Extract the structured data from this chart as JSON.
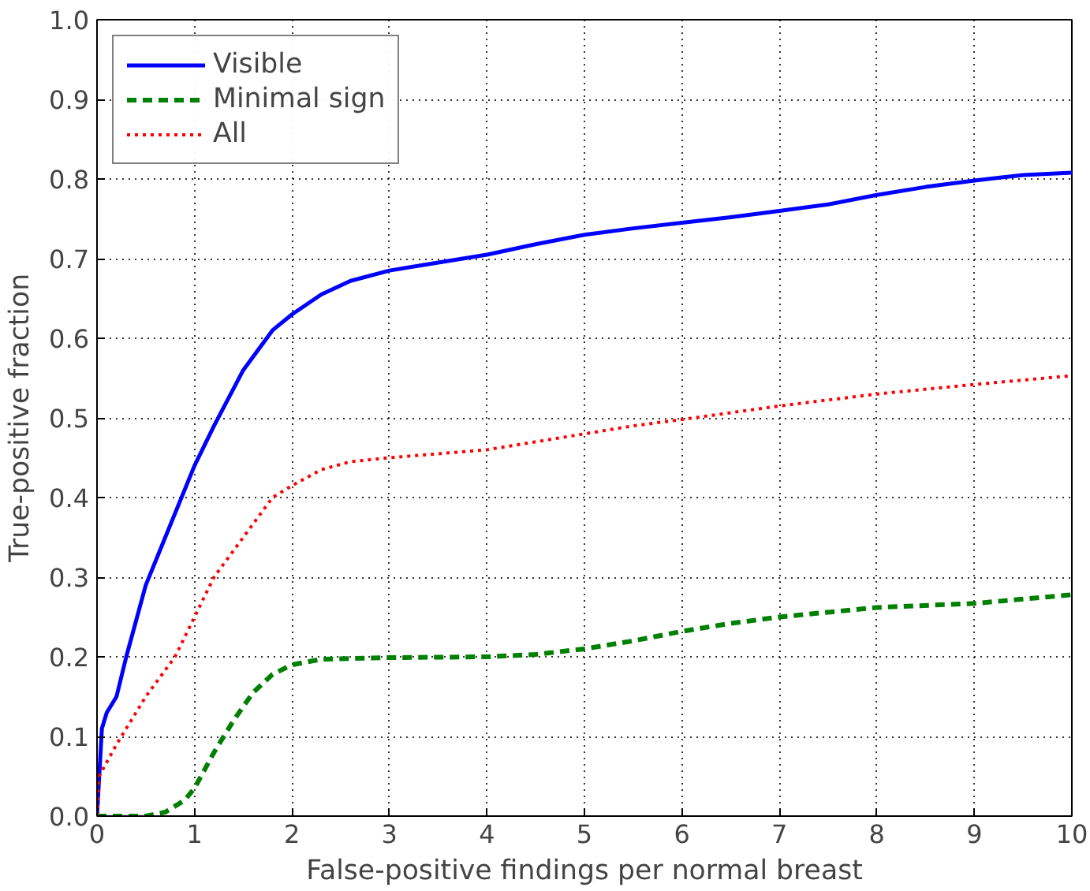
{
  "chart_data": {
    "type": "line",
    "xlabel": "False-positive findings per normal breast",
    "ylabel": "True-positive fraction",
    "xlim": [
      0,
      10
    ],
    "ylim": [
      0,
      1
    ],
    "xticks": [
      0,
      1,
      2,
      3,
      4,
      5,
      6,
      7,
      8,
      9,
      10
    ],
    "yticks": [
      {
        "value": 0,
        "label": "0.0"
      },
      {
        "value": 0.1,
        "label": "0.1"
      },
      {
        "value": 0.2,
        "label": "0.2"
      },
      {
        "value": 0.3,
        "label": "0.3"
      },
      {
        "value": 0.4,
        "label": "0.4"
      },
      {
        "value": 0.5,
        "label": "0.5"
      },
      {
        "value": 0.6,
        "label": "0.6"
      },
      {
        "value": 0.7,
        "label": "0.7"
      },
      {
        "value": 0.8,
        "label": "0.8"
      },
      {
        "value": 0.9,
        "label": "0.9"
      },
      {
        "value": 1,
        "label": "1.0"
      }
    ],
    "grid": true,
    "legend": "top left",
    "series": [
      {
        "name": "Visible",
        "color": "#0000ff",
        "line_style": "solid",
        "x": [
          0,
          0.05,
          0.1,
          0.2,
          0.3,
          0.5,
          0.7,
          1,
          1.2,
          1.5,
          1.8,
          2,
          2.3,
          2.6,
          3,
          3.5,
          4,
          4.5,
          5,
          5.5,
          6,
          6.5,
          7,
          7.5,
          8,
          8.5,
          9,
          9.5,
          10
        ],
        "values": [
          0,
          0.11,
          0.13,
          0.15,
          0.2,
          0.29,
          0.35,
          0.44,
          0.49,
          0.56,
          0.61,
          0.63,
          0.655,
          0.672,
          0.685,
          0.695,
          0.705,
          0.718,
          0.73,
          0.738,
          0.745,
          0.752,
          0.76,
          0.768,
          0.78,
          0.79,
          0.798,
          0.805,
          0.808
        ]
      },
      {
        "name": "Minimal sign",
        "color": "#008000",
        "line_style": "dashed",
        "x": [
          0,
          0.5,
          0.7,
          0.9,
          1,
          1.2,
          1.4,
          1.6,
          1.8,
          2,
          2.3,
          3,
          4,
          4.5,
          5,
          5.5,
          6,
          6.5,
          7,
          7.5,
          8,
          9,
          10
        ],
        "values": [
          0,
          0,
          0.005,
          0.02,
          0.035,
          0.08,
          0.12,
          0.155,
          0.178,
          0.19,
          0.197,
          0.199,
          0.2,
          0.203,
          0.21,
          0.22,
          0.232,
          0.242,
          0.25,
          0.256,
          0.262,
          0.267,
          0.278
        ]
      },
      {
        "name": "All",
        "color": "#ff0000",
        "line_style": "dotted",
        "x": [
          0,
          0.02,
          0.2,
          0.5,
          0.8,
          1,
          1.2,
          1.5,
          1.8,
          2,
          2.3,
          2.6,
          3,
          3.5,
          4,
          4.5,
          5,
          5.5,
          6,
          7,
          8,
          9,
          10
        ],
        "values": [
          0,
          0.05,
          0.09,
          0.15,
          0.2,
          0.25,
          0.3,
          0.35,
          0.4,
          0.415,
          0.435,
          0.445,
          0.45,
          0.455,
          0.46,
          0.47,
          0.48,
          0.49,
          0.498,
          0.515,
          0.53,
          0.542,
          0.553
        ]
      }
    ]
  }
}
